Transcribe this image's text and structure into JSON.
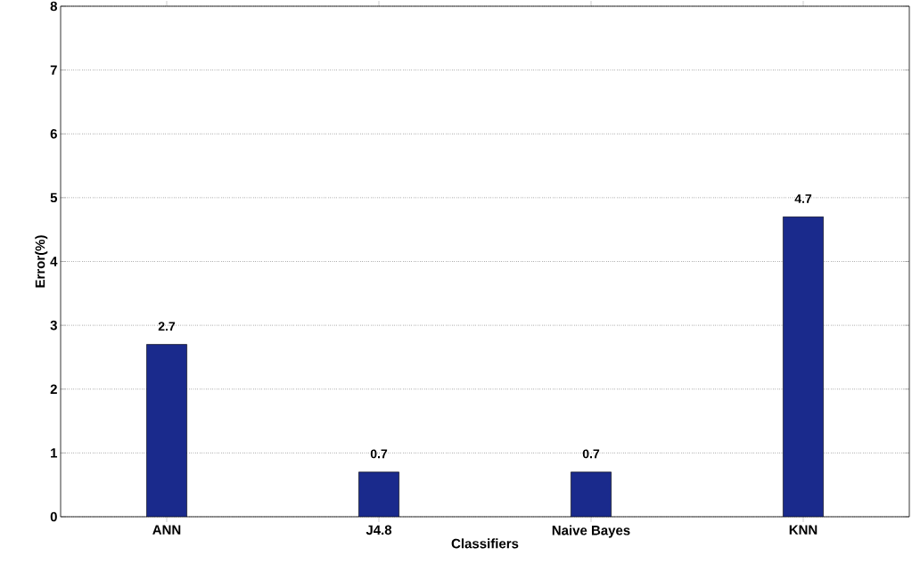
{
  "chart_data": {
    "type": "bar",
    "xlabel": "Classifiers",
    "ylabel": "Error(%)",
    "categories": [
      "ANN",
      "J4.8",
      "Naive Bayes",
      "KNN"
    ],
    "values": [
      2.7,
      0.7,
      0.7,
      4.7
    ],
    "color": "#1a2a8c",
    "ylim": [
      0,
      8
    ],
    "yticks": [
      0,
      1,
      2,
      3,
      4,
      5,
      6,
      7,
      8
    ],
    "grid": "y",
    "data_labels": true
  }
}
